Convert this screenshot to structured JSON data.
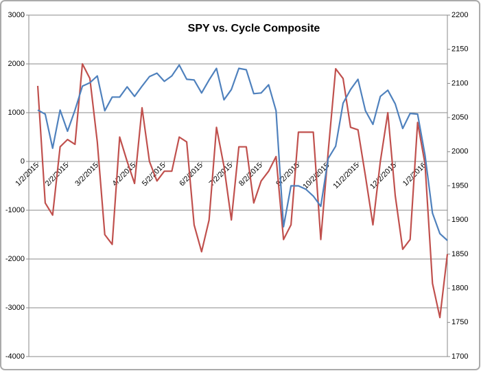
{
  "chart_data": {
    "type": "line",
    "title": "SPY vs. Cycle Composite",
    "categories": [
      "1/2/2015",
      null,
      null,
      null,
      "2/2/2015",
      null,
      null,
      null,
      "3/2/2015",
      null,
      null,
      null,
      null,
      "4/2/2015",
      null,
      null,
      null,
      "5/2/2015",
      null,
      null,
      null,
      null,
      "6/2/2015",
      null,
      null,
      null,
      "7/2/2015",
      null,
      null,
      null,
      "8/2/2015",
      null,
      null,
      null,
      null,
      "9/2/2015",
      null,
      null,
      null,
      "10/2/2015",
      null,
      null,
      null,
      "11/2/2015",
      null,
      null,
      null,
      null,
      "12/2/2015",
      null,
      null,
      null,
      "1/2/2016",
      null,
      null,
      null
    ],
    "series": [
      {
        "color": "#c0504d",
        "values": [
          1550,
          -850,
          -1100,
          300,
          450,
          350,
          2000,
          1700,
          400,
          -1500,
          -1700,
          500,
          0,
          -450,
          1100,
          0,
          -400,
          -200,
          -200,
          500,
          400,
          -1300,
          -1850,
          -1200,
          700,
          -100,
          -1200,
          300,
          300,
          -850,
          -400,
          -200,
          100,
          -1600,
          -1300,
          600,
          600,
          600,
          -1600,
          200,
          1900,
          1700,
          700,
          650,
          -300,
          -1300,
          0,
          1000,
          -700,
          -1800,
          -1600,
          800,
          -50,
          -2500,
          -3200,
          -1900
        ]
      },
      {
        "color": "#4f81bd",
        "axis": "y2",
        "values": [
          2061,
          2055,
          2005,
          2061,
          2030,
          2061,
          2096,
          2101,
          2111,
          2060,
          2080,
          2080,
          2095,
          2081,
          2096,
          2110,
          2115,
          2103,
          2111,
          2127,
          2106,
          2105,
          2086,
          2105,
          2122,
          2076,
          2091,
          2122,
          2120,
          2085,
          2086,
          2098,
          2060,
          1890,
          1950,
          1950,
          1945,
          1935,
          1920,
          1990,
          2008,
          2071,
          2091,
          2106,
          2060,
          2040,
          2081,
          2090,
          2070,
          2034,
          2056,
          2055,
          1995,
          1910,
          1880,
          1870
        ]
      }
    ],
    "ylim": [
      -4000,
      3000
    ],
    "yticks": [
      -4000,
      -3000,
      -2000,
      -1000,
      0,
      1000,
      2000,
      3000
    ],
    "y2lim": [
      1700,
      2200
    ],
    "y2ticks": [
      1700,
      1750,
      1800,
      1850,
      1900,
      1950,
      2000,
      2050,
      2100,
      2150,
      2200
    ],
    "grid": true
  }
}
